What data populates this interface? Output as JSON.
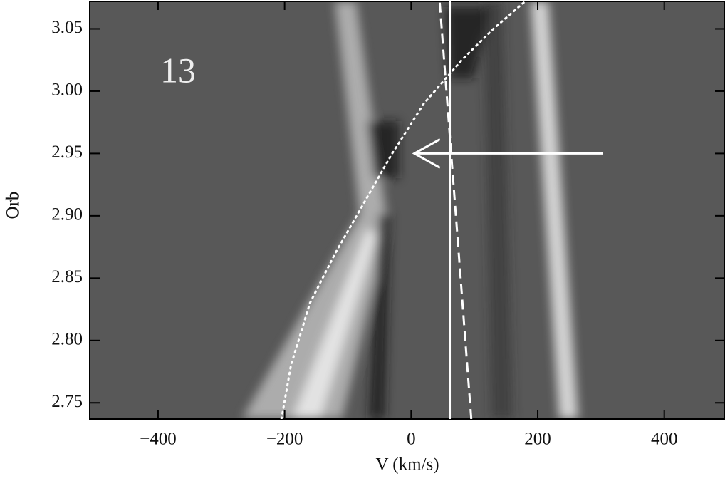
{
  "chart_data": {
    "type": "line",
    "xlabel": "V (km/s)",
    "ylabel": "Orb",
    "annotation": "13",
    "xlim": [
      -508,
      496
    ],
    "ylim": [
      2.737,
      3.072
    ],
    "xticks": [
      {
        "value": -400,
        "label": "−400"
      },
      {
        "value": -200,
        "label": "−200"
      },
      0,
      200,
      400
    ],
    "yticks": [
      {
        "value": 2.75,
        "label": "2.75"
      },
      {
        "value": 2.8,
        "label": "2.80"
      },
      {
        "value": 2.85,
        "label": "2.85"
      },
      {
        "value": 2.9,
        "label": "2.90"
      },
      {
        "value": 2.95,
        "label": "2.95"
      },
      {
        "value": 3.0,
        "label": "3.00"
      },
      3.05
    ],
    "series": [
      {
        "color": "#ffffff",
        "style": "solid",
        "x": [
          61,
          61
        ],
        "values": [
          2.737,
          3.072
        ]
      },
      {
        "color": "#ffffff",
        "style": "dashed",
        "x": [
          95,
          45
        ],
        "values": [
          2.737,
          3.072
        ]
      },
      {
        "color": "#ffffff",
        "style": "dotted",
        "x": [
          -205,
          -190,
          -160,
          -120,
          -75,
          -30,
          20,
          80,
          130,
          180
        ],
        "values": [
          2.737,
          2.78,
          2.83,
          2.87,
          2.91,
          2.95,
          2.99,
          3.025,
          3.05,
          3.072
        ]
      },
      {
        "color": "#ffffff",
        "style": "arrow",
        "x": [
          303,
          5
        ],
        "values": [
          2.95,
          2.95
        ]
      }
    ]
  }
}
